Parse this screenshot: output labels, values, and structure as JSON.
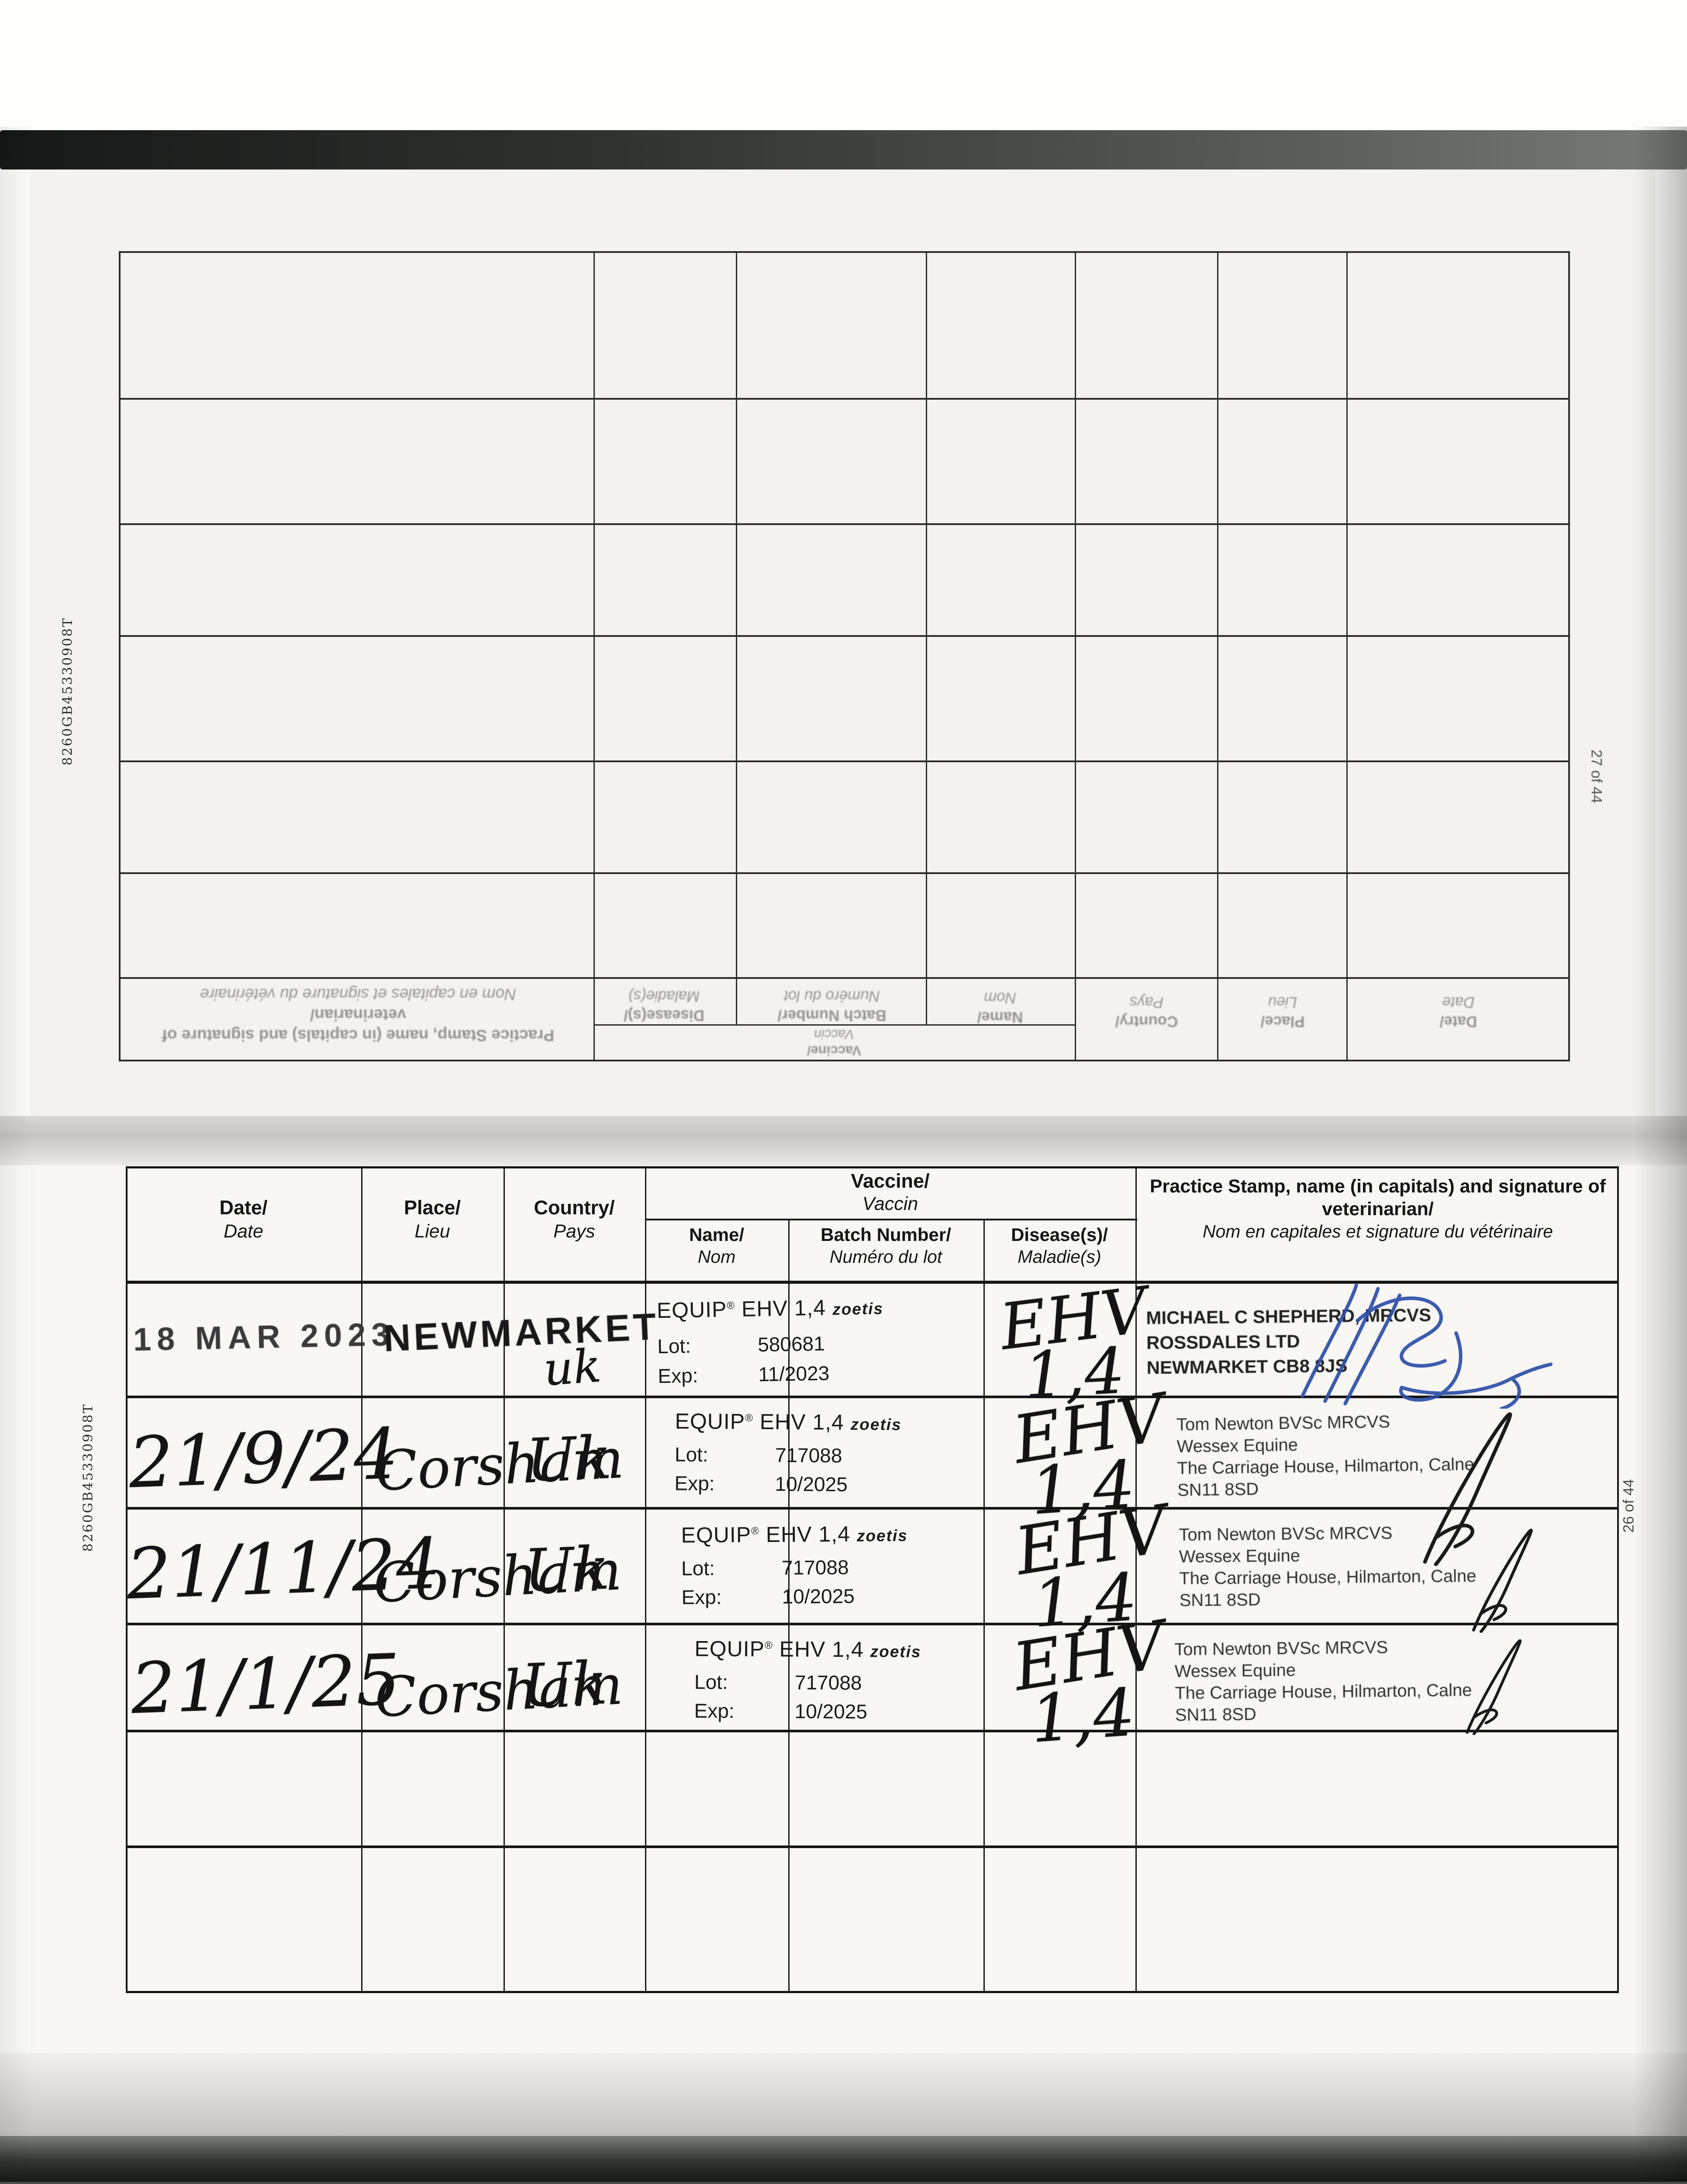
{
  "document_code": "8260GB45330908T",
  "form_header": {
    "date_en": "Date/",
    "date_fr": "Date",
    "place_en": "Place/",
    "place_fr": "Lieu",
    "country_en": "Country/",
    "country_fr": "Pays",
    "vaccine_en": "Vaccine/",
    "vaccine_fr": "Vaccin",
    "name_en": "Name/",
    "name_fr": "Nom",
    "batch_en": "Batch Number/",
    "batch_fr": "Numéro du lot",
    "disease_en": "Disease(s)/",
    "disease_fr": "Maladie(s)",
    "stamp_en": "Practice Stamp, name (in capitals) and signature of veterinarian/",
    "stamp_fr": "Nom en capitales et signature du vétérinaire"
  },
  "vaccine_label": {
    "name": "EQUIP",
    "reg": "®",
    "type": "EHV 1,4",
    "brand": "zoetis"
  },
  "labels": {
    "lot": "Lot:",
    "exp": "Exp:"
  },
  "pages": {
    "top": {
      "page_number": "27 of 44"
    },
    "bottom": {
      "page_number": "26 of 44",
      "rows": [
        {
          "date": "18 MAR 2023",
          "place": "NEWMARKET",
          "country": "uk",
          "lot": "580681",
          "exp": "11/2023",
          "disease": [
            "EHV",
            "1,4"
          ],
          "stamp_lines": [
            "MICHAEL C SHEPHERD, MRCVS",
            "ROSSDALES LTD",
            "NEWMARKET CB8 8JS"
          ],
          "signature_ink": "#2e4fa8"
        },
        {
          "date": "21/9/24",
          "place": "Corsham",
          "country": "Uk",
          "lot": "717088",
          "exp": "10/2025",
          "disease": [
            "EHV",
            "1,4"
          ],
          "stamp_lines": [
            "Tom Newton BVSc MRCVS",
            "Wessex Equine",
            "The Carriage House, Hilmarton, Calne",
            "SN11 8SD"
          ],
          "signature_ink": "#1b1b1b"
        },
        {
          "date": "21/11/24",
          "place": "Corsham",
          "country": "Uk",
          "lot": "717088",
          "exp": "10/2025",
          "disease": [
            "EHV",
            "1,4"
          ],
          "stamp_lines": [
            "Tom Newton BVSc MRCVS",
            "Wessex Equine",
            "The Carriage House, Hilmarton, Calne",
            "SN11 8SD"
          ],
          "signature_ink": "#1b1b1b"
        },
        {
          "date": "21/1/25",
          "place": "Corsham",
          "country": "Uk",
          "lot": "717088",
          "exp": "10/2025",
          "disease": [
            "EHV",
            "1,4"
          ],
          "stamp_lines": [
            "Tom Newton BVSc MRCVS",
            "Wessex Equine",
            "The Carriage House, Hilmarton, Calne",
            "SN11 8SD"
          ],
          "signature_ink": "#1b1b1b"
        }
      ]
    }
  }
}
